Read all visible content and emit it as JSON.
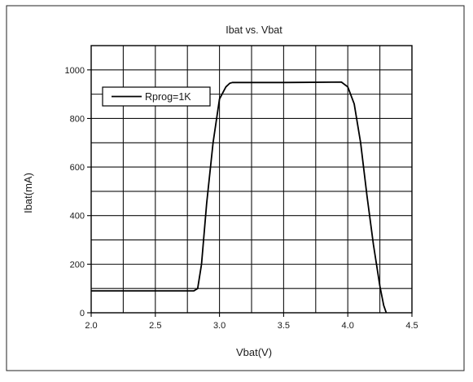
{
  "chart_data": {
    "type": "line",
    "title": "Ibat vs. Vbat",
    "xlabel": "Vbat(V)",
    "ylabel": "Ibat(mA)",
    "xlim": [
      2.0,
      4.5
    ],
    "ylim": [
      0,
      1100
    ],
    "x_ticks": [
      2.0,
      2.5,
      3.0,
      3.5,
      4.0,
      4.5
    ],
    "x_tick_labels": [
      "2.0",
      "2.5",
      "3.0",
      "3.5",
      "4.0",
      "4.5"
    ],
    "y_ticks": [
      0,
      200,
      400,
      600,
      800,
      1000
    ],
    "y_tick_labels": [
      "0",
      "200",
      "400",
      "600",
      "800",
      "1000"
    ],
    "grid": true,
    "legend_position": "top-left",
    "series": [
      {
        "name": "Rprog=1K",
        "color": "#000000",
        "x": [
          2.0,
          2.8,
          2.83,
          2.86,
          2.9,
          2.95,
          3.0,
          3.05,
          3.08,
          3.1,
          3.5,
          3.95,
          4.0,
          4.05,
          4.1,
          4.15,
          4.2,
          4.25,
          4.28,
          4.3
        ],
        "y": [
          90,
          90,
          100,
          200,
          450,
          700,
          880,
          930,
          945,
          948,
          948,
          950,
          930,
          860,
          700,
          480,
          280,
          110,
          30,
          0
        ]
      }
    ]
  }
}
